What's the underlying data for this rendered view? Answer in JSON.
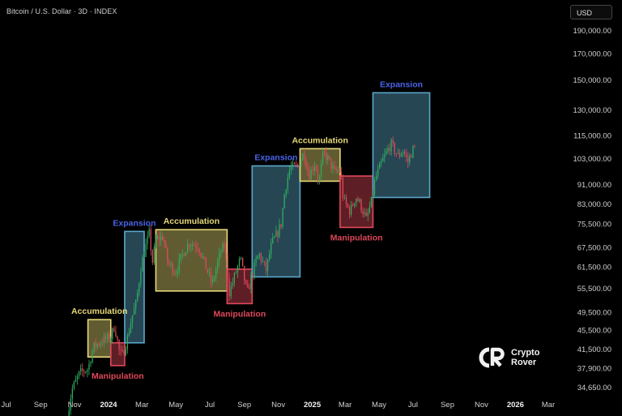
{
  "header": {
    "symbol_title": "Bitcoin / U.S. Dollar · 3D · INDEX",
    "currency_button": "USD"
  },
  "branding": {
    "name_line1": "Crypto",
    "name_line2": "Rover"
  },
  "colors": {
    "background": "#000000",
    "candle_up": "#2fae5f",
    "candle_down": "#e0485a",
    "accumulation": "#e6d977",
    "expansion": "#5aa7c9",
    "manipulation": "#e0485a",
    "expansion_label": "#4a63e6",
    "accumulation_label": "#e6d977",
    "manipulation_label": "#e0485a",
    "axis_text": "#cfcfcf"
  },
  "chart_data": {
    "type": "candlestick",
    "title": "Bitcoin / U.S. Dollar · 3D · INDEX",
    "y_scale": "log",
    "ylim": [
      33000,
      200000
    ],
    "xlim": [
      "2023-06-20",
      "2026-03-20"
    ],
    "y_ticks": [
      {
        "value": 190000,
        "label": "190,000.00"
      },
      {
        "value": 170000,
        "label": "170,000.00"
      },
      {
        "value": 150000,
        "label": "150,000.00"
      },
      {
        "value": 130000,
        "label": "130,000.00"
      },
      {
        "value": 115000,
        "label": "115,000.00"
      },
      {
        "value": 103000,
        "label": "103,000.00"
      },
      {
        "value": 91000,
        "label": "91,000.00"
      },
      {
        "value": 83000,
        "label": "83,000.00"
      },
      {
        "value": 75500,
        "label": "75,500.00"
      },
      {
        "value": 67500,
        "label": "67,500.00"
      },
      {
        "value": 61500,
        "label": "61,500.00"
      },
      {
        "value": 55500,
        "label": "55,500.00"
      },
      {
        "value": 49500,
        "label": "49,500.00"
      },
      {
        "value": 45500,
        "label": "45,500.00"
      },
      {
        "value": 41500,
        "label": "41,500.00"
      },
      {
        "value": 37900,
        "label": "37,900.00"
      },
      {
        "value": 34650,
        "label": "34,650.00"
      }
    ],
    "x_ticks": [
      {
        "date": "2023-07-01",
        "label": "Jul",
        "bold": false
      },
      {
        "date": "2023-09-01",
        "label": "Sep",
        "bold": false
      },
      {
        "date": "2023-11-01",
        "label": "Nov",
        "bold": false
      },
      {
        "date": "2024-01-01",
        "label": "2024",
        "bold": true
      },
      {
        "date": "2024-03-01",
        "label": "Mar",
        "bold": false
      },
      {
        "date": "2024-05-01",
        "label": "May",
        "bold": false
      },
      {
        "date": "2024-07-01",
        "label": "Jul",
        "bold": false
      },
      {
        "date": "2024-09-01",
        "label": "Sep",
        "bold": false
      },
      {
        "date": "2024-11-01",
        "label": "Nov",
        "bold": false
      },
      {
        "date": "2025-01-01",
        "label": "2025",
        "bold": true
      },
      {
        "date": "2025-03-01",
        "label": "Mar",
        "bold": false
      },
      {
        "date": "2025-05-01",
        "label": "May",
        "bold": false
      },
      {
        "date": "2025-07-01",
        "label": "Jul",
        "bold": false
      },
      {
        "date": "2025-09-01",
        "label": "Sep",
        "bold": false
      },
      {
        "date": "2025-11-01",
        "label": "Nov",
        "bold": false
      },
      {
        "date": "2026-01-01",
        "label": "2026",
        "bold": true
      },
      {
        "date": "2026-03-01",
        "label": "Mar",
        "bold": false
      }
    ],
    "price_anchors": [
      [
        "2023-10-16",
        28500
      ],
      [
        "2023-10-27",
        34200
      ],
      [
        "2023-11-10",
        37000
      ],
      [
        "2023-11-25",
        37800
      ],
      [
        "2023-12-05",
        42000
      ],
      [
        "2023-12-20",
        43200
      ],
      [
        "2024-01-05",
        44000
      ],
      [
        "2024-01-12",
        46500
      ],
      [
        "2024-01-20",
        41200
      ],
      [
        "2024-01-25",
        40000
      ],
      [
        "2024-02-03",
        43200
      ],
      [
        "2024-02-12",
        48500
      ],
      [
        "2024-02-20",
        51800
      ],
      [
        "2024-02-28",
        61500
      ],
      [
        "2024-03-08",
        68000
      ],
      [
        "2024-03-14",
        72000
      ],
      [
        "2024-03-20",
        63000
      ],
      [
        "2024-03-26",
        70000
      ],
      [
        "2024-04-08",
        71000
      ],
      [
        "2024-04-16",
        63000
      ],
      [
        "2024-04-30",
        60000
      ],
      [
        "2024-05-15",
        66000
      ],
      [
        "2024-05-25",
        69000
      ],
      [
        "2024-06-10",
        68000
      ],
      [
        "2024-06-25",
        61000
      ],
      [
        "2024-07-05",
        56500
      ],
      [
        "2024-07-20",
        66000
      ],
      [
        "2024-07-28",
        68000
      ],
      [
        "2024-08-05",
        54500
      ],
      [
        "2024-08-15",
        59000
      ],
      [
        "2024-08-25",
        64000
      ],
      [
        "2024-09-06",
        54000
      ],
      [
        "2024-09-15",
        59500
      ],
      [
        "2024-09-27",
        65500
      ],
      [
        "2024-10-10",
        60500
      ],
      [
        "2024-10-20",
        68500
      ],
      [
        "2024-10-30",
        72000
      ],
      [
        "2024-11-06",
        75500
      ],
      [
        "2024-11-13",
        89000
      ],
      [
        "2024-11-22",
        98500
      ],
      [
        "2024-12-05",
        99000
      ],
      [
        "2024-12-17",
        106000
      ],
      [
        "2024-12-26",
        95000
      ],
      [
        "2025-01-06",
        101000
      ],
      [
        "2025-01-13",
        92000
      ],
      [
        "2025-01-21",
        106000
      ],
      [
        "2025-01-31",
        102000
      ],
      [
        "2025-02-10",
        96500
      ],
      [
        "2025-02-20",
        97500
      ],
      [
        "2025-02-26",
        84500
      ],
      [
        "2025-03-10",
        80000
      ],
      [
        "2025-03-20",
        86000
      ],
      [
        "2025-03-28",
        83000
      ],
      [
        "2025-04-08",
        77000
      ],
      [
        "2025-04-18",
        84500
      ],
      [
        "2025-04-24",
        93500
      ],
      [
        "2025-05-08",
        102500
      ],
      [
        "2025-05-22",
        110500
      ],
      [
        "2025-06-05",
        104000
      ],
      [
        "2025-06-12",
        107500
      ],
      [
        "2025-06-22",
        101500
      ],
      [
        "2025-06-30",
        107500
      ],
      [
        "2025-07-06",
        108500
      ]
    ],
    "phases": [
      {
        "type": "accumulation",
        "label": "Accumulation",
        "label_pos": "above",
        "start": "2023-11-25",
        "end": "2024-01-05",
        "low": 40000,
        "high": 47800
      },
      {
        "type": "manipulation",
        "label": "Manipulation",
        "label_pos": "below",
        "start": "2024-01-05",
        "end": "2024-01-30",
        "low": 38400,
        "high": 42800
      },
      {
        "type": "expansion",
        "label": "Expansion",
        "label_pos": "above",
        "start": "2024-01-30",
        "end": "2024-03-05",
        "low": 42800,
        "high": 72800
      },
      {
        "type": "accumulation",
        "label": "Accumulation",
        "label_pos": "above",
        "start": "2024-03-26",
        "end": "2024-08-01",
        "low": 54800,
        "high": 73400
      },
      {
        "type": "manipulation",
        "label": "Manipulation",
        "label_pos": "below",
        "start": "2024-08-01",
        "end": "2024-09-15",
        "low": 51600,
        "high": 60800
      },
      {
        "type": "expansion",
        "label": "Expansion",
        "label_pos": "above",
        "start": "2024-09-15",
        "end": "2024-12-10",
        "low": 58600,
        "high": 99500
      },
      {
        "type": "accumulation",
        "label": "Accumulation",
        "label_pos": "above",
        "start": "2024-12-10",
        "end": "2025-02-20",
        "low": 92500,
        "high": 108000
      },
      {
        "type": "manipulation",
        "label": "Manipulation",
        "label_pos": "below",
        "start": "2025-02-20",
        "end": "2025-04-20",
        "low": 74200,
        "high": 94800
      },
      {
        "type": "expansion",
        "label": "Expansion",
        "label_pos": "above",
        "start": "2025-04-20",
        "end": "2025-07-31",
        "low": 85600,
        "high": 141000
      }
    ]
  }
}
